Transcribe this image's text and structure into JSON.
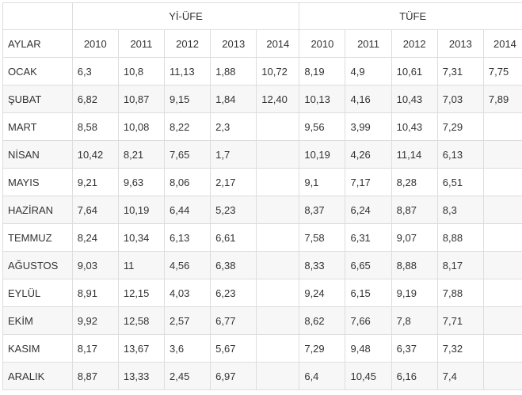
{
  "table": {
    "group_headers": [
      "",
      "Yİ-ÜFE",
      "TÜFE"
    ],
    "month_column_header": "AYLAR",
    "years": [
      "2010",
      "2011",
      "2012",
      "2013",
      "2014"
    ],
    "rows": [
      {
        "month": "OCAK",
        "yi_ufe": [
          "6,3",
          "10,8",
          "11,13",
          "1,88",
          "10,72"
        ],
        "tufe": [
          "8,19",
          "4,9",
          "10,61",
          "7,31",
          "7,75"
        ]
      },
      {
        "month": "ŞUBAT",
        "yi_ufe": [
          "6,82",
          "10,87",
          "9,15",
          "1,84",
          "12,40"
        ],
        "tufe": [
          "10,13",
          "4,16",
          "10,43",
          "7,03",
          "7,89"
        ]
      },
      {
        "month": "MART",
        "yi_ufe": [
          "8,58",
          "10,08",
          "8,22",
          "2,3",
          ""
        ],
        "tufe": [
          "9,56",
          "3,99",
          "10,43",
          "7,29",
          ""
        ]
      },
      {
        "month": "NİSAN",
        "yi_ufe": [
          "10,42",
          "8,21",
          "7,65",
          "1,7",
          ""
        ],
        "tufe": [
          "10,19",
          "4,26",
          "11,14",
          "6,13",
          ""
        ]
      },
      {
        "month": "MAYIS",
        "yi_ufe": [
          "9,21",
          "9,63",
          "8,06",
          "2,17",
          ""
        ],
        "tufe": [
          "9,1",
          "7,17",
          "8,28",
          "6,51",
          ""
        ]
      },
      {
        "month": "HAZİRAN",
        "yi_ufe": [
          "7,64",
          "10,19",
          "6,44",
          "5,23",
          ""
        ],
        "tufe": [
          "8,37",
          "6,24",
          "8,87",
          "8,3",
          ""
        ]
      },
      {
        "month": "TEMMUZ",
        "yi_ufe": [
          "8,24",
          "10,34",
          "6,13",
          "6,61",
          ""
        ],
        "tufe": [
          "7,58",
          "6,31",
          "9,07",
          "8,88",
          ""
        ]
      },
      {
        "month": "AĞUSTOS",
        "yi_ufe": [
          "9,03",
          "11",
          "4,56",
          "6,38",
          ""
        ],
        "tufe": [
          "8,33",
          "6,65",
          "8,88",
          "8,17",
          ""
        ]
      },
      {
        "month": "EYLÜL",
        "yi_ufe": [
          "8,91",
          "12,15",
          "4,03",
          "6,23",
          ""
        ],
        "tufe": [
          "9,24",
          "6,15",
          "9,19",
          "7,88",
          ""
        ]
      },
      {
        "month": "EKİM",
        "yi_ufe": [
          "9,92",
          "12,58",
          "2,57",
          "6,77",
          ""
        ],
        "tufe": [
          "8,62",
          "7,66",
          "7,8",
          "7,71",
          ""
        ]
      },
      {
        "month": "KASIM",
        "yi_ufe": [
          "8,17",
          "13,67",
          "3,6",
          "5,67",
          ""
        ],
        "tufe": [
          "7,29",
          "9,48",
          "6,37",
          "7,32",
          ""
        ]
      },
      {
        "month": "ARALIK",
        "yi_ufe": [
          "8,87",
          "13,33",
          "2,45",
          "6,97",
          ""
        ],
        "tufe": [
          "6,4",
          "10,45",
          "6,16",
          "7,4",
          ""
        ]
      }
    ]
  },
  "colors": {
    "border": "#dddddd",
    "text": "#333333",
    "zebra_row": "#f7f7f7"
  }
}
